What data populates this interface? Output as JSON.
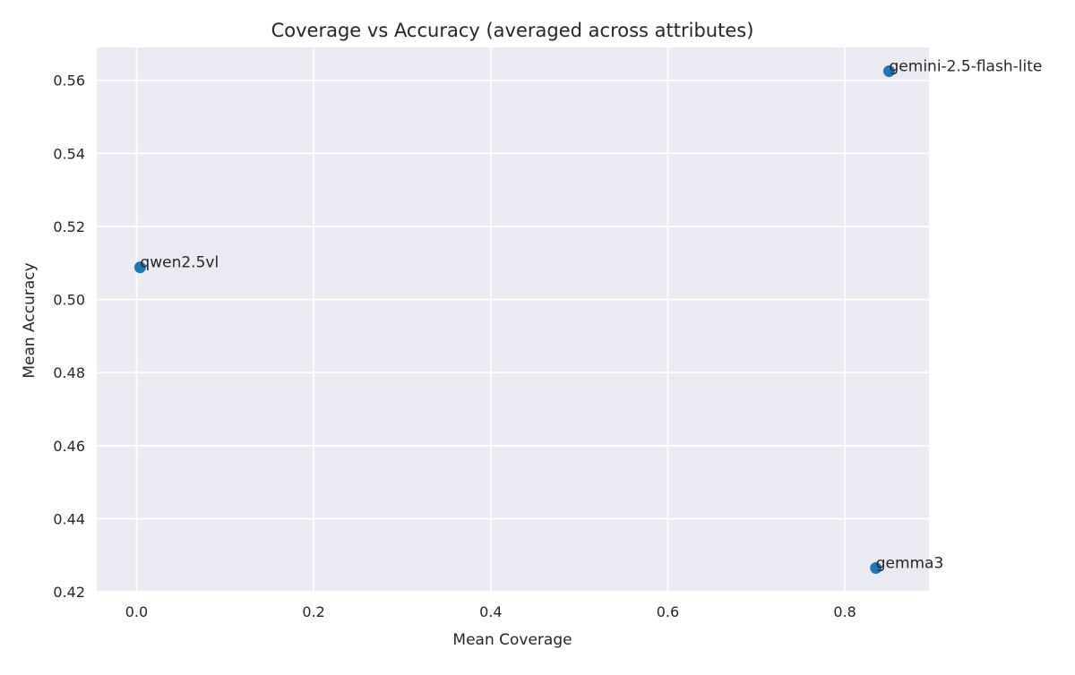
{
  "chart_data": {
    "type": "scatter",
    "title": "Coverage vs Accuracy (averaged across attributes)",
    "xlabel": "Mean Coverage",
    "ylabel": "Mean Accuracy",
    "xlim": [
      -0.045,
      0.895
    ],
    "ylim": [
      0.42,
      0.569
    ],
    "x_ticks": [
      0.0,
      0.2,
      0.4,
      0.6,
      0.8
    ],
    "x_tick_labels": [
      "0.0",
      "0.2",
      "0.4",
      "0.6",
      "0.8"
    ],
    "y_ticks": [
      0.42,
      0.44,
      0.46,
      0.48,
      0.5,
      0.52,
      0.54,
      0.56
    ],
    "y_tick_labels": [
      "0.42",
      "0.44",
      "0.46",
      "0.48",
      "0.50",
      "0.52",
      "0.54",
      "0.56"
    ],
    "grid": true,
    "points": [
      {
        "label": "gemini-2.5-flash-lite",
        "x": 0.85,
        "y": 0.5625
      },
      {
        "label": "qwen2.5vl",
        "x": 0.004,
        "y": 0.5088
      },
      {
        "label": "gemma3",
        "x": 0.835,
        "y": 0.4265
      }
    ],
    "colors": {
      "background": "#eaeaf2",
      "grid": "#ffffff",
      "marker": "#1f77b4",
      "text": "#262626"
    }
  }
}
